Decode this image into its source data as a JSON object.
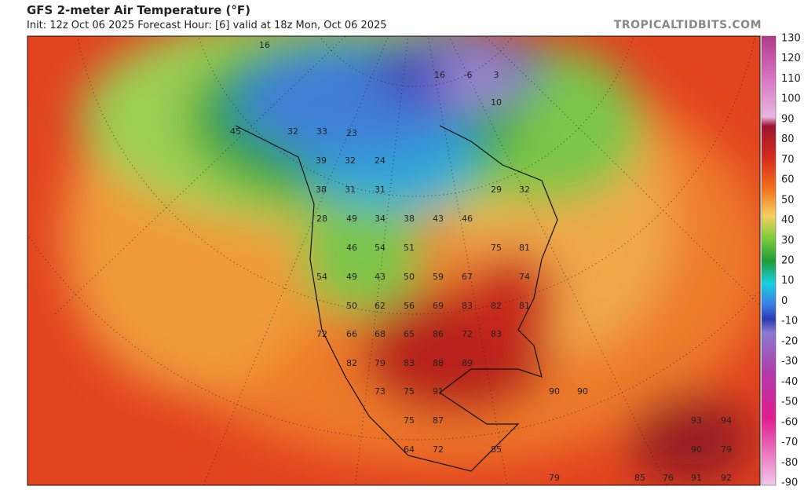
{
  "header": {
    "title": "GFS 2-meter Air Temperature (°F)",
    "subtitle": "Init: 12z Oct 06 2025   Forecast Hour: [6]   valid at 18z Mon, Oct 06 2025",
    "brand": "TROPICALTIDBITS.COM"
  },
  "map": {
    "labels": [
      16,
      16,
      -6,
      3,
      10,
      32,
      33,
      45,
      23,
      39,
      32,
      24,
      38,
      31,
      31,
      29,
      32,
      28,
      49,
      34,
      38,
      43,
      46,
      46,
      54,
      51,
      75,
      81,
      54,
      49,
      43,
      50,
      59,
      67,
      74,
      50,
      62,
      56,
      69,
      83,
      82,
      81,
      72,
      66,
      68,
      65,
      86,
      72,
      83,
      82,
      79,
      83,
      88,
      89,
      73,
      75,
      91,
      90,
      90,
      75,
      87,
      93,
      94,
      64,
      72,
      85,
      90,
      79,
      79,
      85,
      76,
      91,
      92
    ]
  },
  "colorbar": {
    "ticks": [
      130,
      120,
      110,
      100,
      90,
      80,
      70,
      60,
      50,
      40,
      30,
      20,
      10,
      0,
      -10,
      -20,
      -30,
      -40,
      -50,
      -60,
      -70,
      -80,
      -90
    ]
  }
}
